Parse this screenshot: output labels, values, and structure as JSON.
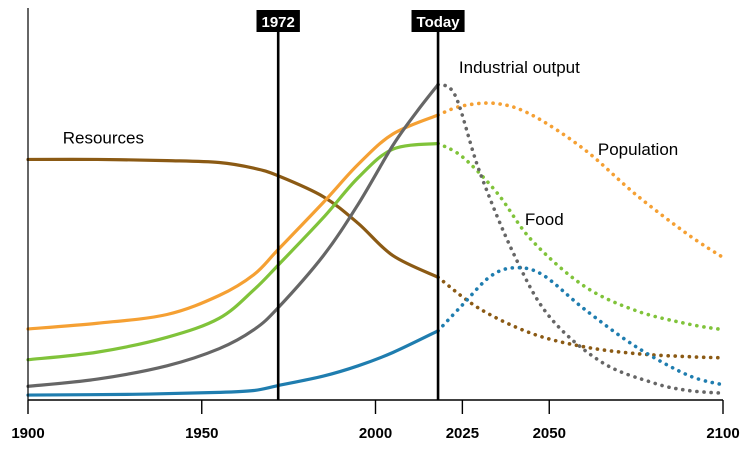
{
  "chart_data": {
    "type": "line",
    "title": "",
    "xlabel": "",
    "ylabel": "",
    "xlim": [
      1900,
      2100
    ],
    "ylim": [
      0,
      100
    ],
    "x_ticks": [
      {
        "value": 1900,
        "label": "1900"
      },
      {
        "value": 1950,
        "label": "1950"
      },
      {
        "value": 2000,
        "label": "2000"
      },
      {
        "value": 2025,
        "label": "2025"
      },
      {
        "value": 2050,
        "label": "2050"
      },
      {
        "value": 2100,
        "label": "2100"
      }
    ],
    "markers": [
      {
        "x": 1972,
        "label": "1972"
      },
      {
        "x": 2018,
        "label": "Today"
      }
    ],
    "today": 2018,
    "grid": false,
    "legend": "none",
    "series": [
      {
        "name": "Resources",
        "color": "#8B5A14",
        "x": [
          1900,
          1920,
          1940,
          1955,
          1965,
          1972,
          1985,
          1995,
          2005,
          2018,
          2030,
          2045,
          2060,
          2075,
          2090,
          2100
        ],
        "y": [
          63.3,
          63.3,
          63.0,
          62.5,
          61.0,
          59.0,
          53.5,
          46.5,
          38.0,
          32.3,
          24.0,
          17.5,
          14.0,
          12.2,
          11.4,
          11.1
        ]
      },
      {
        "name": "Population",
        "color": "#F5A033",
        "x": [
          1900,
          1920,
          1940,
          1955,
          1965,
          1972,
          1985,
          1995,
          2005,
          2018,
          2025,
          2035,
          2045,
          2060,
          2075,
          2090,
          2100
        ],
        "y": [
          18.7,
          20.2,
          22.5,
          27.5,
          33.0,
          39.6,
          52.0,
          62.0,
          70.0,
          75.0,
          77.4,
          78.0,
          75.0,
          66.0,
          54.0,
          43.5,
          37.5
        ]
      },
      {
        "name": "Food",
        "color": "#80C33A",
        "x": [
          1900,
          1920,
          1940,
          1955,
          1965,
          1972,
          1985,
          1995,
          2005,
          2018,
          2025,
          2035,
          2045,
          2060,
          2075,
          2090,
          2100
        ],
        "y": [
          10.6,
          12.6,
          16.5,
          21.5,
          29.0,
          35.5,
          48.0,
          58.5,
          66.0,
          67.5,
          64.0,
          54.5,
          42.0,
          30.0,
          23.5,
          20.0,
          18.5
        ]
      },
      {
        "name": "Industrial output",
        "color": "#666666",
        "x": [
          1900,
          1920,
          1940,
          1955,
          1965,
          1972,
          1985,
          1995,
          2005,
          2012,
          2018,
          2023,
          2030,
          2040,
          2050,
          2065,
          2080,
          2090,
          2100
        ],
        "y": [
          3.6,
          5.5,
          9.0,
          13.5,
          18.5,
          24.3,
          38.0,
          51.5,
          67.0,
          76.0,
          83.0,
          80.0,
          60.0,
          38.0,
          22.0,
          10.0,
          4.5,
          2.5,
          1.8
        ]
      },
      {
        "name": "",
        "color": "#1F7DAF",
        "x": [
          1900,
          1930,
          1955,
          1965,
          1972,
          1985,
          1995,
          2005,
          2018,
          2025,
          2033,
          2040,
          2048,
          2060,
          2075,
          2090,
          2100
        ],
        "y": [
          1.3,
          1.5,
          2.0,
          2.5,
          3.8,
          6.3,
          9.0,
          12.5,
          18.2,
          25.0,
          32.5,
          34.8,
          33.0,
          24.0,
          14.0,
          6.5,
          4.0
        ]
      }
    ],
    "series_labels": [
      {
        "series": 0,
        "text": "Resources",
        "x": 1910,
        "y": 67.5,
        "anchor": "start"
      },
      {
        "series": 1,
        "text": "Population",
        "x": 2064,
        "y": 64.5,
        "anchor": "start"
      },
      {
        "series": 2,
        "text": "Food",
        "x": 2043,
        "y": 46.0,
        "anchor": "start"
      },
      {
        "series": 3,
        "text": "Industrial output",
        "x": 2024,
        "y": 86.0,
        "anchor": "start"
      }
    ]
  }
}
